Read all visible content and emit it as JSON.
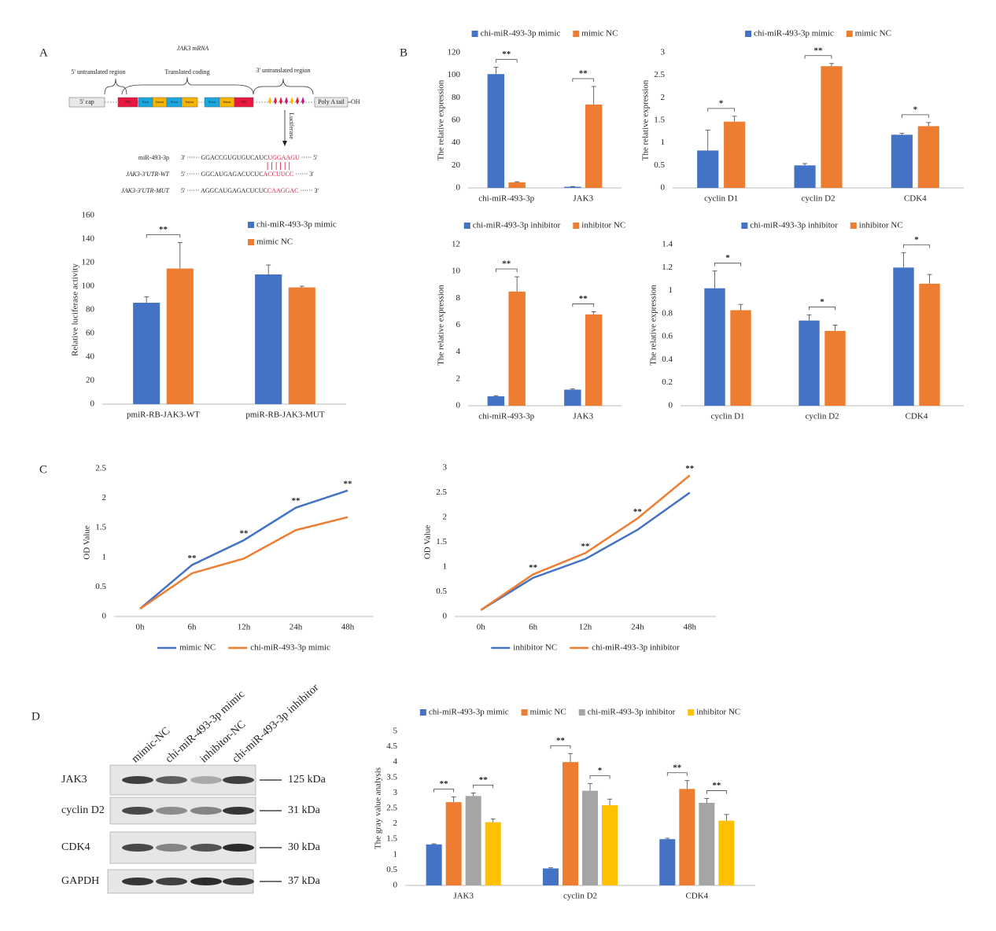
{
  "panel_labels": [
    "A",
    "B",
    "C",
    "D"
  ],
  "diagram": {
    "title": "JAK3 mRNA",
    "regions": [
      "5' untranslated region",
      "Translated coding",
      "3' untranslated region"
    ],
    "blocks": [
      "5' cap",
      "ATG",
      "Exon",
      "Intron",
      "Exon",
      "Intron",
      "Exon",
      "Intron",
      "TAG",
      "Poly A tail"
    ],
    "tail": "OH",
    "arrow_label": "Luciferase",
    "sequences": [
      {
        "name": "miR-493-3p",
        "prefix": "3' ······ GGACCGUGUGUCAUC",
        "site": "UGGAAGU",
        "suffix": " ····· 5'"
      },
      {
        "name": "JAK3-3'UTR-WT",
        "prefix": "5' ······ GGCAUGAGACUCUC",
        "site": "ACCUUCC",
        "suffix": " ······ 3'"
      },
      {
        "name": "JAK3-3'UTR-MUT",
        "prefix": "5' ······ AGGCAUGAGACUCUC",
        "site": "CAAGGAC",
        "suffix": " ······ 3'"
      }
    ]
  },
  "blot": {
    "lanes": [
      "mimic-NC",
      "chi-miR-493-3p mimic",
      "inhibitor-NC",
      "chi-miR-493-3p inhibitor"
    ],
    "rows": [
      {
        "protein": "JAK3",
        "size": "125 kDa"
      },
      {
        "protein": "cyclin D2",
        "size": "31 kDa"
      },
      {
        "protein": "CDK4",
        "size": "30 kDa"
      },
      {
        "protein": "GAPDH",
        "size": "37 kDa"
      }
    ]
  },
  "chart_data": [
    {
      "type": "bar",
      "y_label": "Relative luciferase activity",
      "categories": [
        "pmiR-RB-JAK3-WT",
        "pmiR-RB-JAK3-MUT"
      ],
      "series": [
        {
          "name": "chi-miR-493-3p mimic",
          "color": "#4472c4",
          "values": [
            86,
            110
          ],
          "errors": [
            5,
            8
          ]
        },
        {
          "name": "mimic NC",
          "color": "#ed7d31",
          "values": [
            115,
            99
          ],
          "errors": [
            22,
            1
          ]
        }
      ],
      "significance": [
        "**",
        null
      ],
      "ylim": [
        0,
        160
      ],
      "yticks": [
        0,
        20,
        40,
        60,
        80,
        100,
        120,
        140,
        160
      ],
      "legend": "upper right"
    },
    {
      "type": "bar",
      "y_label": "The relative expression",
      "categories": [
        "chi-miR-493-3p",
        "JAK3"
      ],
      "series": [
        {
          "name": "chi-miR-493-3p mimic",
          "color": "#4472c4",
          "values": [
            101,
            1
          ],
          "errors": [
            6,
            0.3
          ]
        },
        {
          "name": "mimic NC",
          "color": "#ed7d31",
          "values": [
            5,
            74
          ],
          "errors": [
            0.5,
            16
          ]
        }
      ],
      "significance": [
        "**",
        "**"
      ],
      "ylim": [
        0,
        120
      ],
      "yticks": [
        0,
        20,
        40,
        60,
        80,
        100,
        120
      ],
      "legend": "top"
    },
    {
      "type": "bar",
      "y_label": "The relative expression",
      "categories": [
        "cyclin D1",
        "cyclin D2",
        "CDK4"
      ],
      "series": [
        {
          "name": "chi-miR-493-3p mimic",
          "color": "#4472c4",
          "values": [
            0.83,
            0.5,
            1.18
          ],
          "errors": [
            0.45,
            0.04,
            0.03
          ]
        },
        {
          "name": "mimic NC",
          "color": "#ed7d31",
          "values": [
            1.47,
            2.7,
            1.37
          ],
          "errors": [
            0.12,
            0.06,
            0.08
          ]
        }
      ],
      "significance": [
        "*",
        "**",
        "*"
      ],
      "ylim": [
        0,
        3
      ],
      "yticks": [
        0,
        0.5,
        1,
        1.5,
        2,
        2.5,
        3
      ],
      "legend": "top"
    },
    {
      "type": "bar",
      "y_label": "The relative expression",
      "categories": [
        "chi-miR-493-3p",
        "JAK3"
      ],
      "series": [
        {
          "name": "chi-miR-493-3p inhibitor",
          "color": "#4472c4",
          "values": [
            0.7,
            1.2
          ],
          "errors": [
            0.05,
            0.05
          ]
        },
        {
          "name": "inhibitor NC",
          "color": "#ed7d31",
          "values": [
            8.5,
            6.8
          ],
          "errors": [
            1.1,
            0.2
          ]
        }
      ],
      "significance": [
        "**",
        "**"
      ],
      "ylim": [
        0,
        12
      ],
      "yticks": [
        0,
        2,
        4,
        6,
        8,
        10,
        12
      ],
      "legend": "top"
    },
    {
      "type": "bar",
      "y_label": "The relative expression",
      "categories": [
        "cyclin D1",
        "cyclin D2",
        "CDK4"
      ],
      "series": [
        {
          "name": "chi-miR-493-3p inhibitor",
          "color": "#4472c4",
          "values": [
            1.02,
            0.74,
            1.2
          ],
          "errors": [
            0.15,
            0.05,
            0.13
          ]
        },
        {
          "name": "inhibitor NC",
          "color": "#ed7d31",
          "values": [
            0.83,
            0.65,
            1.06
          ],
          "errors": [
            0.05,
            0.05,
            0.08
          ]
        }
      ],
      "significance": [
        "*",
        "*",
        "*"
      ],
      "ylim": [
        0,
        1.4
      ],
      "yticks": [
        0,
        0.2,
        0.4,
        0.6,
        0.8,
        1,
        1.2,
        1.4
      ],
      "legend": "top"
    },
    {
      "type": "line",
      "y_label": "OD Value",
      "categories": [
        "0h",
        "6h",
        "12h",
        "24h",
        "48h"
      ],
      "series": [
        {
          "name": "mimic NC",
          "color": "#4472c4",
          "values": [
            0.13,
            0.87,
            1.29,
            1.84,
            2.13
          ]
        },
        {
          "name": "chi-miR-493-3p mimic",
          "color": "#ed7d31",
          "values": [
            0.13,
            0.73,
            0.98,
            1.46,
            1.68
          ]
        }
      ],
      "significance": [
        null,
        "**",
        "**",
        "**",
        "**"
      ],
      "ylim": [
        0,
        2.5
      ],
      "yticks": [
        0,
        0.5,
        1,
        1.5,
        2,
        2.5
      ],
      "legend": "bottom"
    },
    {
      "type": "line",
      "y_label": "OD Value",
      "categories": [
        "0h",
        "6h",
        "12h",
        "24h",
        "48h"
      ],
      "series": [
        {
          "name": "inhibitor NC",
          "color": "#4472c4",
          "values": [
            0.13,
            0.78,
            1.16,
            1.75,
            2.5
          ]
        },
        {
          "name": "chi-miR-493-3p inhibitor",
          "color": "#ed7d31",
          "values": [
            0.13,
            0.85,
            1.28,
            1.98,
            2.85
          ]
        }
      ],
      "significance": [
        null,
        "**",
        "**",
        "**",
        "**"
      ],
      "ylim": [
        0,
        3
      ],
      "yticks": [
        0,
        0.5,
        1,
        1.5,
        2,
        2.5,
        3
      ],
      "legend": "bottom"
    },
    {
      "type": "bar",
      "y_label": "The gray value analysis",
      "categories": [
        "JAK3",
        "cyclin D2",
        "CDK4"
      ],
      "series": [
        {
          "name": "chi-miR-493-3p mimic",
          "color": "#4472c4",
          "values": [
            1.33,
            0.55,
            1.5
          ],
          "errors": [
            0.02,
            0.02,
            0.03
          ]
        },
        {
          "name": "mimic NC",
          "color": "#ed7d31",
          "values": [
            2.7,
            4.0,
            3.13
          ],
          "errors": [
            0.17,
            0.28,
            0.27
          ]
        },
        {
          "name": "chi-miR-493-3p inhibitor",
          "color": "#a5a5a5",
          "values": [
            2.9,
            3.07,
            2.68
          ],
          "errors": [
            0.1,
            0.23,
            0.14
          ]
        },
        {
          "name": "inhibitor NC",
          "color": "#ffc000",
          "values": [
            2.05,
            2.6,
            2.1
          ],
          "errors": [
            0.1,
            0.2,
            0.2
          ]
        }
      ],
      "significance": [
        [
          "**",
          "**"
        ],
        [
          "**",
          "*"
        ],
        [
          "**",
          "**"
        ]
      ],
      "ylim": [
        0,
        5
      ],
      "yticks": [
        0,
        0.5,
        1,
        1.5,
        2,
        2.5,
        3,
        3.5,
        4,
        4.5,
        5
      ],
      "legend": "top"
    }
  ]
}
